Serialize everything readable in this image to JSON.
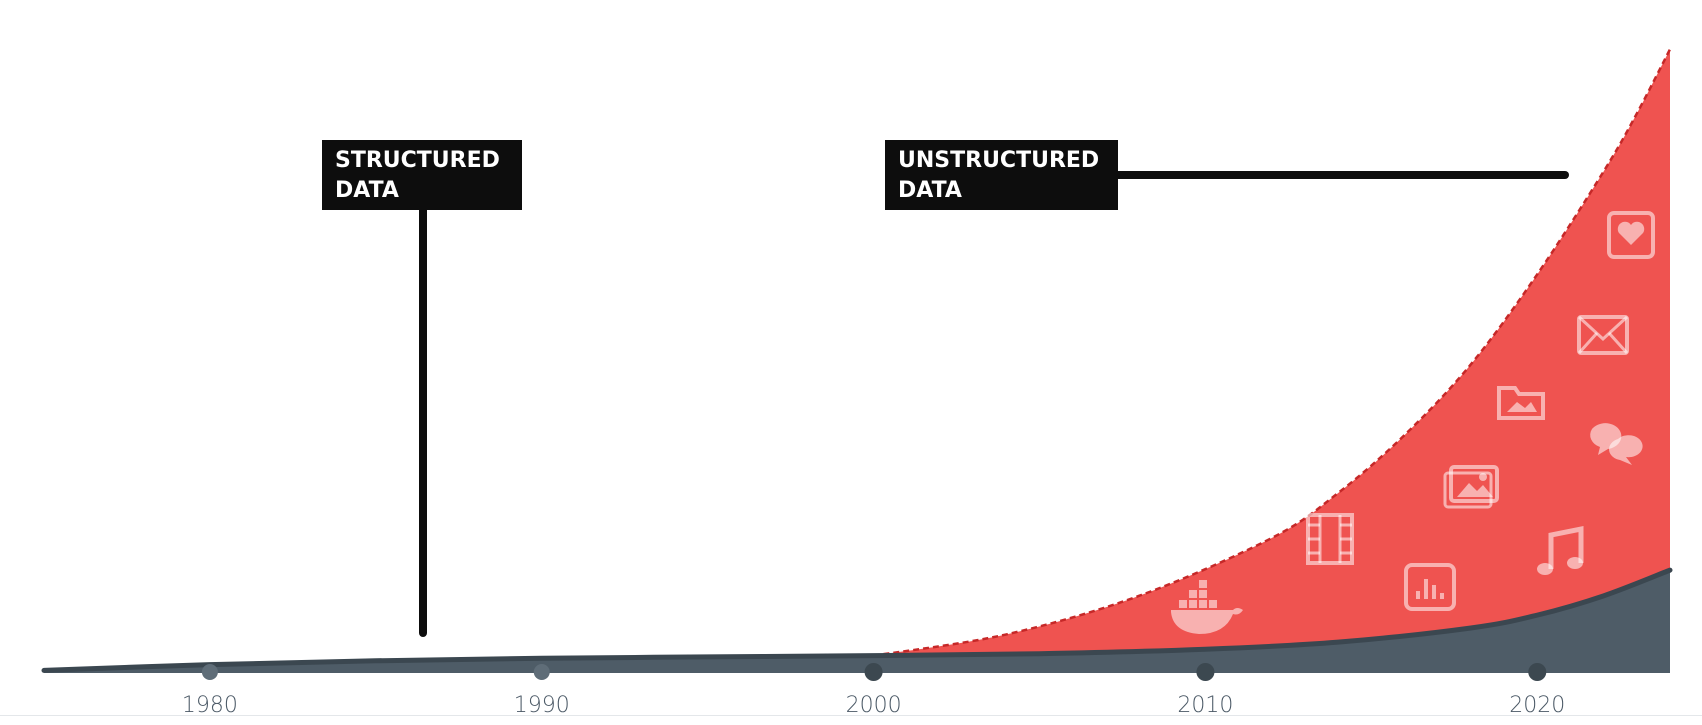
{
  "chart_data": {
    "type": "area",
    "x_range": [
      1975,
      2024
    ],
    "y_range": [
      0,
      100
    ],
    "x_ticks": [
      "1980",
      "1990",
      "2000",
      "2010",
      "2020"
    ],
    "series": [
      {
        "key": "structured",
        "color": "#4e5c67",
        "x": [
          1975,
          1980,
          1985,
          1990,
          1995,
          2000,
          2005,
          2010,
          2014,
          2018,
          2020,
          2022,
          2024
        ],
        "y": [
          0.4,
          1.3,
          1.9,
          2.3,
          2.5,
          2.7,
          3.0,
          3.7,
          4.8,
          7.0,
          9.0,
          12.0,
          16.0
        ]
      },
      {
        "key": "unstructured",
        "color": "#ef5350",
        "x": [
          2000,
          2004,
          2008,
          2012,
          2014,
          2016,
          2018,
          2020,
          2022,
          2023,
          2024
        ],
        "y": [
          2.7,
          6.0,
          12.0,
          21.0,
          28.0,
          37.0,
          48.0,
          62.0,
          78.0,
          87.0,
          97.0
        ]
      }
    ],
    "annotations": [
      {
        "lines": [
          "STRUCTURED",
          "DATA"
        ],
        "points_to": "structured"
      },
      {
        "lines": [
          "UNSTRUCTURED",
          "DATA"
        ],
        "points_to": "unstructured"
      }
    ],
    "icons": [
      "docker-whale-icon",
      "film-strip-icon",
      "bar-chart-icon",
      "image-icon",
      "photo-folder-icon",
      "chat-bubbles-icon",
      "envelope-icon",
      "heart-box-icon",
      "music-note-icon"
    ]
  }
}
